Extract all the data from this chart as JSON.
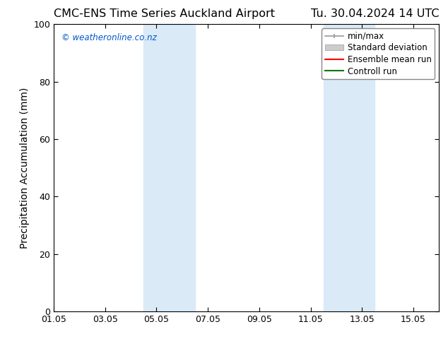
{
  "title_left": "CMC-ENS Time Series Auckland Airport",
  "title_right": "Tu. 30.04.2024 14 UTC",
  "ylabel": "Precipitation Accumulation (mm)",
  "ylim": [
    0,
    100
  ],
  "yticks": [
    0,
    20,
    40,
    60,
    80,
    100
  ],
  "xtick_labels": [
    "01.05",
    "03.05",
    "05.05",
    "07.05",
    "09.05",
    "11.05",
    "13.05",
    "15.05"
  ],
  "xtick_positions": [
    0,
    2,
    4,
    6,
    8,
    10,
    12,
    14
  ],
  "xlim": [
    0,
    15
  ],
  "shade_regions": [
    {
      "x_start": 3.5,
      "x_end": 5.5
    },
    {
      "x_start": 10.5,
      "x_end": 12.5
    }
  ],
  "background_color": "#ffffff",
  "shade_color": "#daeaf7",
  "watermark_text": "© weatheronline.co.nz",
  "watermark_color": "#0055cc",
  "legend_entries": [
    {
      "label": "min/max",
      "color": "#aaaaaa"
    },
    {
      "label": "Standard deviation",
      "color": "#cccccc"
    },
    {
      "label": "Ensemble mean run",
      "color": "#ff0000"
    },
    {
      "label": "Controll run",
      "color": "#007700"
    }
  ],
  "title_fontsize": 11.5,
  "axis_fontsize": 10,
  "tick_fontsize": 9,
  "legend_fontsize": 8.5,
  "watermark_fontsize": 8.5
}
